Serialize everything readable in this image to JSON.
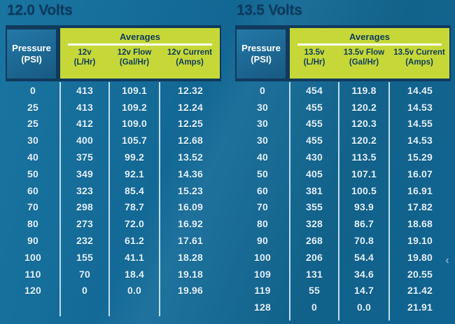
{
  "chart_data": [
    {
      "type": "table",
      "title": "12.0 Volts",
      "row_header": {
        "line1": "Pressure",
        "line2": "(PSI)"
      },
      "group_header": "Averages",
      "columns": [
        {
          "line1": "12v",
          "line2": "(L/Hr)"
        },
        {
          "line1": "12v Flow",
          "line2": "(Gal/Hr)"
        },
        {
          "line1": "12v Current",
          "line2": "(Amps)"
        }
      ],
      "column_keys": [
        "Pressure (PSI)",
        "12v (L/Hr)",
        "12v Flow (Gal/Hr)",
        "12v Current (Amps)"
      ],
      "rows": [
        [
          "0",
          "413",
          "109.1",
          "12.32"
        ],
        [
          "25",
          "413",
          "109.2",
          "12.24"
        ],
        [
          "25",
          "412",
          "109.0",
          "12.25"
        ],
        [
          "30",
          "400",
          "105.7",
          "12.68"
        ],
        [
          "40",
          "375",
          "99.2",
          "13.52"
        ],
        [
          "50",
          "349",
          "92.1",
          "14.36"
        ],
        [
          "60",
          "323",
          "85.4",
          "15.23"
        ],
        [
          "70",
          "298",
          "78.7",
          "16.09"
        ],
        [
          "80",
          "273",
          "72.0",
          "16.92"
        ],
        [
          "90",
          "232",
          "61.2",
          "17.61"
        ],
        [
          "100",
          "155",
          "41.1",
          "18.28"
        ],
        [
          "110",
          "70",
          "18.4",
          "19.18"
        ],
        [
          "120",
          "0",
          "0.0",
          "19.96"
        ]
      ]
    },
    {
      "type": "table",
      "title": "13.5 Volts",
      "row_header": {
        "line1": "Pressure",
        "line2": "(PSI)"
      },
      "group_header": "Averages",
      "columns": [
        {
          "line1": "13.5v",
          "line2": "(L/Hr)"
        },
        {
          "line1": "13.5v Flow",
          "line2": "(Gal/Hr)"
        },
        {
          "line1": "13.5v Current",
          "line2": "(Amps)"
        }
      ],
      "column_keys": [
        "Pressure (PSI)",
        "13.5v (L/Hr)",
        "13.5v Flow (Gal/Hr)",
        "13.5v Current (Amps)"
      ],
      "rows": [
        [
          "0",
          "454",
          "119.8",
          "14.45"
        ],
        [
          "30",
          "455",
          "120.2",
          "14.53"
        ],
        [
          "30",
          "455",
          "120.3",
          "14.55"
        ],
        [
          "30",
          "455",
          "120.2",
          "14.53"
        ],
        [
          "40",
          "430",
          "113.5",
          "15.29"
        ],
        [
          "50",
          "405",
          "107.1",
          "16.07"
        ],
        [
          "60",
          "381",
          "100.5",
          "16.91"
        ],
        [
          "70",
          "355",
          "93.9",
          "17.82"
        ],
        [
          "80",
          "328",
          "86.7",
          "18.68"
        ],
        [
          "90",
          "268",
          "70.8",
          "19.10"
        ],
        [
          "100",
          "206",
          "54.4",
          "19.80"
        ],
        [
          "109",
          "131",
          "34.6",
          "20.55"
        ],
        [
          "119",
          "55",
          "14.7",
          "21.42"
        ],
        [
          "128",
          "0",
          "0.0",
          "21.91"
        ]
      ]
    }
  ],
  "icons": {
    "left_chevron": "‹"
  },
  "colors": {
    "navy": "#11395c",
    "navy_text": "#0c3a5e",
    "lime": "#c6d838",
    "pressure_box_top": "#2478a8",
    "pressure_box_bottom": "#175a82",
    "data_text": "#e4f1fb",
    "divider": "#cfe8f4"
  }
}
